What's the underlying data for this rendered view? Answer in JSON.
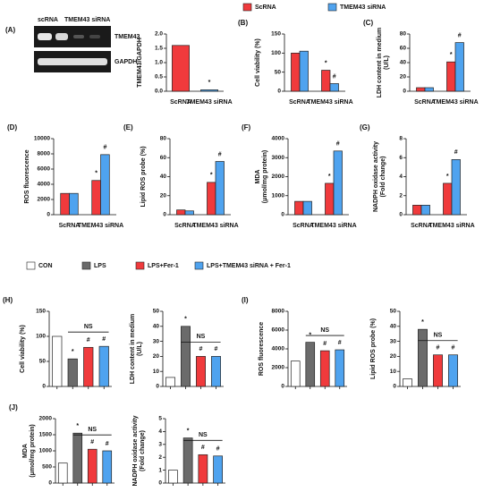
{
  "blot": {
    "label": "(A)",
    "columns": [
      "scRNA",
      "TMEM43 siRNA"
    ],
    "rows": [
      "TMEM43",
      "GAPDH"
    ]
  },
  "legends": [
    [
      {
        "name": "ScRNA",
        "color": "#f03a3c"
      },
      {
        "name": "TMEM43 siRNA",
        "color": "#4fa3ef"
      }
    ],
    [
      {
        "name": "CON",
        "color": "#ffffff"
      },
      {
        "name": "LPS",
        "color": "#6b6b6b"
      },
      {
        "name": "LPS+Fer-1",
        "color": "#f03a3c"
      },
      {
        "name": "LPS+TMEM43 siRNA + Fer-1",
        "color": "#4fa3ef"
      }
    ]
  ],
  "chart_data": [
    {
      "type": "bar",
      "ylabel": [
        "TMEM43/GAPDH"
      ],
      "categories": [
        "ScRNA",
        "TMEM43 siRNA"
      ],
      "values": [
        1.6,
        0.05
      ],
      "colors": [
        "#f03a3c",
        "#4fa3ef"
      ],
      "bar_labels": [
        null,
        "*"
      ],
      "ylim": [
        0,
        2
      ],
      "yticks": [
        {
          "value": 0,
          "label": "0.0"
        },
        0.5,
        {
          "value": 1,
          "label": "1.0"
        },
        1.5,
        {
          "value": 2,
          "label": "2.0"
        }
      ]
    },
    {
      "type": "grouped_bar",
      "label": "(B)",
      "ylabel": [
        "Cell viability (%)"
      ],
      "categories": [
        "ScRNA",
        "TMEM43 siRNA"
      ],
      "series": [
        {
          "color": "#f03a3c",
          "values": [
            100,
            55
          ],
          "bar_labels": [
            null,
            "*"
          ]
        },
        {
          "color": "#4fa3ef",
          "values": [
            105,
            20
          ],
          "bar_labels": [
            null,
            "#"
          ]
        }
      ],
      "ylim": [
        0,
        150
      ],
      "yticks": [
        0,
        50,
        100,
        150
      ]
    },
    {
      "type": "grouped_bar",
      "label": "(C)",
      "ylabel": [
        "LDH content in medium",
        "(U/L)"
      ],
      "categories": [
        "ScRNA",
        "TMEM43 siRNA"
      ],
      "series": [
        {
          "color": "#f03a3c",
          "values": [
            5,
            41
          ],
          "bar_labels": [
            null,
            "*"
          ]
        },
        {
          "color": "#4fa3ef",
          "values": [
            5,
            68
          ],
          "bar_labels": [
            null,
            "#"
          ]
        }
      ],
      "ylim": [
        0,
        80
      ],
      "yticks": [
        0,
        20,
        40,
        60,
        80
      ]
    },
    {
      "type": "grouped_bar",
      "label": "(D)",
      "ylabel": [
        "ROS fluorescence"
      ],
      "categories": [
        "ScRNA",
        "TMEM43 siRNA"
      ],
      "series": [
        {
          "color": "#f03a3c",
          "values": [
            2800,
            4500
          ],
          "bar_labels": [
            null,
            "*"
          ]
        },
        {
          "color": "#4fa3ef",
          "values": [
            2800,
            7900
          ],
          "bar_labels": [
            null,
            "#"
          ]
        }
      ],
      "ylim": [
        0,
        10000
      ],
      "yticks": [
        0,
        2000,
        4000,
        6000,
        8000,
        10000
      ]
    },
    {
      "type": "grouped_bar",
      "label": "(E)",
      "ylabel": [
        "Lipid ROS probe (%)"
      ],
      "categories": [
        "ScRNA",
        "TMEM43 siRNA"
      ],
      "series": [
        {
          "color": "#f03a3c",
          "values": [
            5,
            34
          ],
          "bar_labels": [
            null,
            "*"
          ]
        },
        {
          "color": "#4fa3ef",
          "values": [
            4,
            56
          ],
          "bar_labels": [
            null,
            "#"
          ]
        }
      ],
      "ylim": [
        0,
        80
      ],
      "yticks": [
        0,
        20,
        40,
        60,
        80
      ]
    },
    {
      "type": "grouped_bar",
      "label": "(F)",
      "ylabel": [
        "MDA",
        "(μmol/mg protein)"
      ],
      "categories": [
        "ScRNA",
        "TMEM43 siRNA"
      ],
      "series": [
        {
          "color": "#f03a3c",
          "values": [
            700,
            1650
          ],
          "bar_labels": [
            null,
            "*"
          ]
        },
        {
          "color": "#4fa3ef",
          "values": [
            700,
            3350
          ],
          "bar_labels": [
            null,
            "#"
          ]
        }
      ],
      "ylim": [
        0,
        4000
      ],
      "yticks": [
        0,
        1000,
        2000,
        3000,
        4000
      ]
    },
    {
      "type": "grouped_bar",
      "label": "(G)",
      "ylabel": [
        "NADPH oxidase activity",
        "(Fold change)"
      ],
      "categories": [
        "ScRNA",
        "TMEM43 siRNA"
      ],
      "series": [
        {
          "color": "#f03a3c",
          "values": [
            1,
            3.3
          ],
          "bar_labels": [
            null,
            "*"
          ]
        },
        {
          "color": "#4fa3ef",
          "values": [
            1,
            5.8
          ],
          "bar_labels": [
            null,
            "#"
          ]
        }
      ],
      "ylim": [
        0,
        8
      ],
      "yticks": [
        0,
        2,
        4,
        6,
        8
      ]
    },
    {
      "type": "bar",
      "label": "(H)",
      "ylabel": [
        "Cell viability (%)"
      ],
      "values": [
        100,
        55,
        78,
        80
      ],
      "colors": [
        "#ffffff",
        "#6b6b6b",
        "#f03a3c",
        "#4fa3ef"
      ],
      "bar_labels": [
        null,
        "*",
        "#",
        "#"
      ],
      "bracket": "NS",
      "ylim": [
        0,
        150
      ],
      "yticks": [
        0,
        50,
        100,
        150
      ]
    },
    {
      "type": "bar",
      "ylabel": [
        "LDH content in medium",
        "(U/L)"
      ],
      "values": [
        6,
        40,
        20,
        20
      ],
      "colors": [
        "#ffffff",
        "#6b6b6b",
        "#f03a3c",
        "#4fa3ef"
      ],
      "bar_labels": [
        null,
        "*",
        "#",
        "#"
      ],
      "bracket": "NS",
      "ylim": [
        0,
        50
      ],
      "yticks": [
        0,
        10,
        20,
        30,
        40,
        50
      ]
    },
    {
      "type": "bar",
      "label": "(I)",
      "ylabel": [
        "ROS fluorescence"
      ],
      "values": [
        2700,
        4700,
        3800,
        3900
      ],
      "colors": [
        "#ffffff",
        "#6b6b6b",
        "#f03a3c",
        "#4fa3ef"
      ],
      "bar_labels": [
        null,
        "*",
        "#",
        "#"
      ],
      "bracket": "NS",
      "ylim": [
        0,
        8000
      ],
      "yticks": [
        0,
        2000,
        4000,
        6000,
        8000
      ]
    },
    {
      "type": "bar",
      "ylabel": [
        "Lipid ROS probe (%)"
      ],
      "values": [
        5,
        38,
        21,
        21
      ],
      "colors": [
        "#ffffff",
        "#6b6b6b",
        "#f03a3c",
        "#4fa3ef"
      ],
      "bar_labels": [
        null,
        "*",
        "#",
        "#"
      ],
      "bracket": "NS",
      "ylim": [
        0,
        50
      ],
      "yticks": [
        0,
        10,
        20,
        30,
        40,
        50
      ]
    },
    {
      "type": "bar",
      "label": "(J)",
      "ylabel": [
        "MDA",
        "(μmol/mg protein)"
      ],
      "values": [
        620,
        1550,
        1050,
        1000
      ],
      "colors": [
        "#ffffff",
        "#6b6b6b",
        "#f03a3c",
        "#4fa3ef"
      ],
      "bar_labels": [
        null,
        "*",
        "#",
        "#"
      ],
      "bracket": "NS",
      "ylim": [
        0,
        2000
      ],
      "yticks": [
        0,
        500,
        1000,
        1500,
        2000
      ]
    },
    {
      "type": "bar",
      "ylabel": [
        "NADPH oxidase activity",
        "(Fold change)"
      ],
      "values": [
        1,
        3.5,
        2.2,
        2.1
      ],
      "colors": [
        "#ffffff",
        "#6b6b6b",
        "#f03a3c",
        "#4fa3ef"
      ],
      "bar_labels": [
        null,
        "*",
        "#",
        "#"
      ],
      "bracket": "NS",
      "ylim": [
        0,
        5
      ],
      "yticks": [
        0,
        1,
        2,
        3,
        4,
        5
      ]
    }
  ]
}
